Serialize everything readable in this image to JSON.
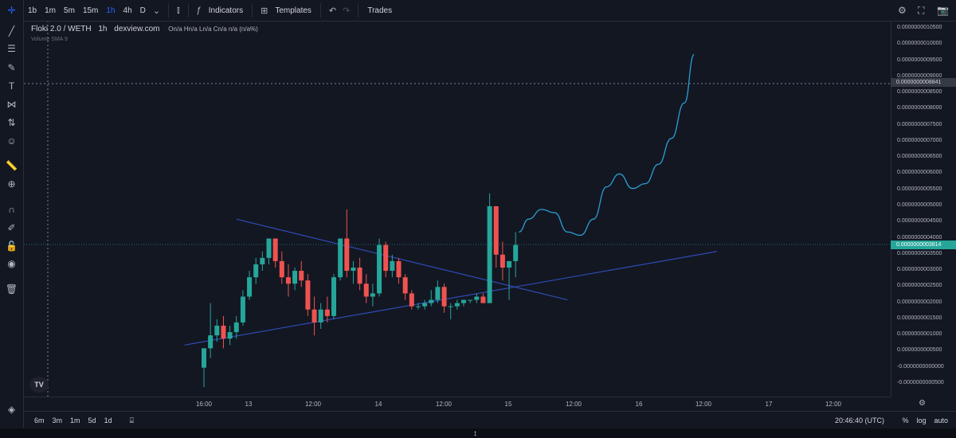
{
  "toolbar": {
    "timeframes": [
      "1b",
      "1m",
      "5m",
      "15m",
      "1h",
      "4h",
      "D"
    ],
    "active_timeframe": "1h",
    "indicators_label": "Indicators",
    "templates_label": "Templates",
    "trades_label": "Trades"
  },
  "legend": {
    "pair": "Floki 2.0 / WETH",
    "interval": "1h",
    "source": "dexview.com",
    "ohlc": "On/a Hn/a Ln/a Cn/a n/a (n/a%)",
    "volume": "Volume SMA 9"
  },
  "price_axis": {
    "ticks": [
      "0.0000000010500",
      "0.0000000010000",
      "0.0000000009500",
      "0.0000000009000",
      "0.0000000008500",
      "0.0000000008000",
      "0.0000000007500",
      "0.0000000007000",
      "0.0000000006500",
      "0.0000000006000",
      "0.0000000005500",
      "0.0000000005000",
      "0.0000000004500",
      "0.0000000004000",
      "0.0000000003500",
      "0.0000000003000",
      "0.0000000002500",
      "0.0000000002000",
      "0.0000000001500",
      "0.0000000001000",
      "0.0000000000500",
      "-0.0000000000000",
      "-0.0000000000500"
    ],
    "crosshair_label": "0.0000000008841",
    "last_price_label": "0.0000000003814"
  },
  "time_axis": {
    "ticks": [
      "16:00",
      "13",
      "12:00",
      "14",
      "12:00",
      "15",
      "12:00",
      "16",
      "12:00",
      "17",
      "12:00"
    ]
  },
  "bottom": {
    "ranges": [
      "6m",
      "3m",
      "1m",
      "5d",
      "1d"
    ],
    "clock": "20:46:40 (UTC)",
    "percent": "%",
    "log": "log",
    "auto": "auto"
  },
  "colors": {
    "up": "#26a69a",
    "down": "#ef5350",
    "trendline": "#2f4bb5",
    "projection": "#2a9fd6"
  },
  "chart_data": {
    "type": "candlestick",
    "symbol": "Floki 2.0 / WETH",
    "interval": "1h",
    "candles": [
      {
        "o": 0.0,
        "h": 0.06,
        "l": -0.06,
        "c": 0.06
      },
      {
        "o": 0.06,
        "h": 0.2,
        "l": 0.03,
        "c": 0.1
      },
      {
        "o": 0.1,
        "h": 0.15,
        "l": 0.08,
        "c": 0.13
      },
      {
        "o": 0.13,
        "h": 0.16,
        "l": 0.06,
        "c": 0.09
      },
      {
        "o": 0.09,
        "h": 0.13,
        "l": 0.07,
        "c": 0.11
      },
      {
        "o": 0.11,
        "h": 0.16,
        "l": 0.09,
        "c": 0.14
      },
      {
        "o": 0.14,
        "h": 0.24,
        "l": 0.13,
        "c": 0.22
      },
      {
        "o": 0.22,
        "h": 0.3,
        "l": 0.21,
        "c": 0.28
      },
      {
        "o": 0.28,
        "h": 0.34,
        "l": 0.26,
        "c": 0.32
      },
      {
        "o": 0.32,
        "h": 0.36,
        "l": 0.3,
        "c": 0.34
      },
      {
        "o": 0.34,
        "h": 0.4,
        "l": 0.32,
        "c": 0.4
      },
      {
        "o": 0.4,
        "h": 0.4,
        "l": 0.31,
        "c": 0.33
      },
      {
        "o": 0.33,
        "h": 0.36,
        "l": 0.26,
        "c": 0.28
      },
      {
        "o": 0.28,
        "h": 0.32,
        "l": 0.22,
        "c": 0.26
      },
      {
        "o": 0.26,
        "h": 0.31,
        "l": 0.24,
        "c": 0.3
      },
      {
        "o": 0.3,
        "h": 0.33,
        "l": 0.25,
        "c": 0.27
      },
      {
        "o": 0.27,
        "h": 0.29,
        "l": 0.16,
        "c": 0.18
      },
      {
        "o": 0.18,
        "h": 0.22,
        "l": 0.1,
        "c": 0.14
      },
      {
        "o": 0.14,
        "h": 0.2,
        "l": 0.12,
        "c": 0.18
      },
      {
        "o": 0.18,
        "h": 0.22,
        "l": 0.14,
        "c": 0.16
      },
      {
        "o": 0.16,
        "h": 0.29,
        "l": 0.15,
        "c": 0.28
      },
      {
        "o": 0.28,
        "h": 0.4,
        "l": 0.27,
        "c": 0.4
      },
      {
        "o": 0.4,
        "h": 0.49,
        "l": 0.28,
        "c": 0.3
      },
      {
        "o": 0.3,
        "h": 0.33,
        "l": 0.26,
        "c": 0.31
      },
      {
        "o": 0.31,
        "h": 0.34,
        "l": 0.24,
        "c": 0.26
      },
      {
        "o": 0.26,
        "h": 0.29,
        "l": 0.2,
        "c": 0.22
      },
      {
        "o": 0.22,
        "h": 0.26,
        "l": 0.19,
        "c": 0.23
      },
      {
        "o": 0.23,
        "h": 0.4,
        "l": 0.22,
        "c": 0.38
      },
      {
        "o": 0.38,
        "h": 0.39,
        "l": 0.28,
        "c": 0.3
      },
      {
        "o": 0.3,
        "h": 0.35,
        "l": 0.28,
        "c": 0.33
      },
      {
        "o": 0.33,
        "h": 0.34,
        "l": 0.26,
        "c": 0.28
      },
      {
        "o": 0.28,
        "h": 0.29,
        "l": 0.21,
        "c": 0.23
      },
      {
        "o": 0.23,
        "h": 0.24,
        "l": 0.18,
        "c": 0.19
      },
      {
        "o": 0.19,
        "h": 0.2,
        "l": 0.18,
        "c": 0.19
      },
      {
        "o": 0.19,
        "h": 0.21,
        "l": 0.18,
        "c": 0.2
      },
      {
        "o": 0.2,
        "h": 0.24,
        "l": 0.19,
        "c": 0.21
      },
      {
        "o": 0.21,
        "h": 0.27,
        "l": 0.2,
        "c": 0.25
      },
      {
        "o": 0.25,
        "h": 0.26,
        "l": 0.17,
        "c": 0.19
      },
      {
        "o": 0.19,
        "h": 0.2,
        "l": 0.15,
        "c": 0.19
      },
      {
        "o": 0.19,
        "h": 0.21,
        "l": 0.18,
        "c": 0.2
      },
      {
        "o": 0.2,
        "h": 0.21,
        "l": 0.19,
        "c": 0.21
      },
      {
        "o": 0.21,
        "h": 0.21,
        "l": 0.2,
        "c": 0.21
      },
      {
        "o": 0.21,
        "h": 0.23,
        "l": 0.2,
        "c": 0.22
      },
      {
        "o": 0.22,
        "h": 0.23,
        "l": 0.2,
        "c": 0.2
      },
      {
        "o": 0.2,
        "h": 0.54,
        "l": 0.2,
        "c": 0.5
      },
      {
        "o": 0.5,
        "h": 0.5,
        "l": 0.31,
        "c": 0.35
      },
      {
        "o": 0.35,
        "h": 0.39,
        "l": 0.27,
        "c": 0.31
      },
      {
        "o": 0.31,
        "h": 0.33,
        "l": 0.21,
        "c": 0.33
      },
      {
        "o": 0.33,
        "h": 0.42,
        "l": 0.28,
        "c": 0.38
      }
    ],
    "trendlines": [
      {
        "name": "upper",
        "from": {
          "i": 5,
          "p": 0.46
        },
        "to": {
          "i": 56,
          "p": 0.21
        }
      },
      {
        "name": "lower",
        "from": {
          "i": -3,
          "p": 0.07
        },
        "to": {
          "i": 79,
          "p": 0.36
        }
      }
    ],
    "projection_path": [
      {
        "i": 48.5,
        "p": 0.42
      },
      {
        "i": 50,
        "p": 0.46
      },
      {
        "i": 52,
        "p": 0.49
      },
      {
        "i": 54,
        "p": 0.48
      },
      {
        "i": 56,
        "p": 0.42
      },
      {
        "i": 58,
        "p": 0.41
      },
      {
        "i": 60,
        "p": 0.46
      },
      {
        "i": 62,
        "p": 0.56
      },
      {
        "i": 64,
        "p": 0.6
      },
      {
        "i": 66,
        "p": 0.555
      },
      {
        "i": 68,
        "p": 0.57
      },
      {
        "i": 70,
        "p": 0.63
      },
      {
        "i": 72,
        "p": 0.71
      },
      {
        "i": 74,
        "p": 0.82
      },
      {
        "i": 75.5,
        "p": 0.97
      }
    ],
    "ylim": [
      -0.05,
      1.05
    ],
    "crosshair_price": 0.8841,
    "last_price": 0.3814
  }
}
